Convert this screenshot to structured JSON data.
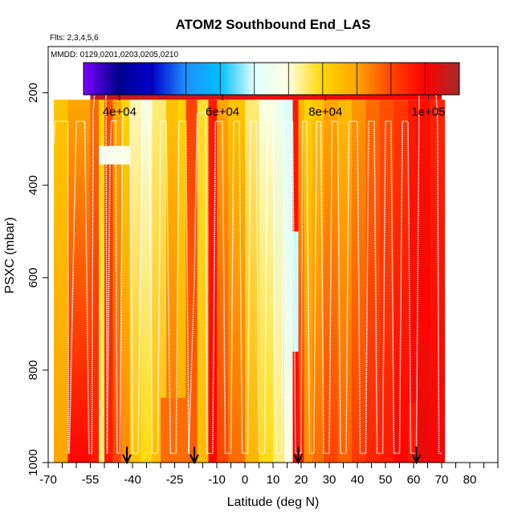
{
  "chart_data": {
    "type": "heatmap",
    "title": "ATOM2 Southbound End_LAS",
    "flights_label": "Flts: 2,3,4,5,6",
    "dates_label": "MMDD: 0129,0201,0203,0205,0210",
    "xlabel": "Latitude (deg N)",
    "ylabel": "PSXC (mbar)",
    "xlim": [
      -70,
      90
    ],
    "ylim": [
      1000,
      100
    ],
    "x_ticks": [
      -70,
      -55,
      -40,
      -25,
      -10,
      0,
      10,
      20,
      30,
      40,
      50,
      60,
      70,
      80
    ],
    "x_minor_step": 5,
    "y_ticks": [
      200,
      400,
      600,
      800,
      1000
    ],
    "colorbar": {
      "range": [
        33000,
        106000
      ],
      "tick_values": [
        40000,
        60000,
        80000,
        100000
      ],
      "tick_labels": [
        "4e+04",
        "6e+04",
        "8e+04",
        "1e+05"
      ],
      "colors": [
        "#7b00ff",
        "#00008b",
        "#0000cd",
        "#1e90ff",
        "#00bfff",
        "#e0ffff",
        "#ffffe0",
        "#ffd700",
        "#ffa500",
        "#ff4500",
        "#ff0000",
        "#a52a2a"
      ]
    },
    "arrow_latitudes": [
      -42,
      -18,
      19,
      61
    ],
    "columns": [
      {
        "x0": -68,
        "x1": -63,
        "p_top": 215,
        "p_bot": 1000,
        "v_top": 82000,
        "v_bot": 86000
      },
      {
        "x0": -63,
        "x1": -55,
        "p_top": 215,
        "p_bot": 1000,
        "v_top": 86000,
        "v_bot": 99000
      },
      {
        "x0": -55,
        "x1": -52,
        "p_top": 215,
        "p_bot": 1000,
        "v_top": 90000,
        "v_bot": 97000
      },
      {
        "x0": -52,
        "x1": -50,
        "p_top": 215,
        "p_bot": 1000,
        "v_top": 80000,
        "v_bot": 76000
      },
      {
        "x0": -50,
        "x1": -47,
        "p_top": 215,
        "p_bot": 1000,
        "v_top": 92000,
        "v_bot": 97000
      },
      {
        "x0": -47,
        "x1": -44,
        "p_top": 215,
        "p_bot": 1000,
        "v_top": 85000,
        "v_bot": 93000
      },
      {
        "x0": -44,
        "x1": -41,
        "p_top": 215,
        "p_bot": 1000,
        "v_top": 80000,
        "v_bot": 88000
      },
      {
        "x0": -41,
        "x1": -37,
        "p_top": 215,
        "p_bot": 1000,
        "v_top": 74000,
        "v_bot": 82000
      },
      {
        "x0": -37,
        "x1": -33,
        "p_top": 215,
        "p_bot": 1000,
        "v_top": 71000,
        "v_bot": 79000
      },
      {
        "x0": -33,
        "x1": -28,
        "p_top": 215,
        "p_bot": 1000,
        "v_top": 76000,
        "v_bot": 83000
      },
      {
        "x0": -28,
        "x1": -24,
        "p_top": 215,
        "p_bot": 1000,
        "v_top": 82000,
        "v_bot": 90000
      },
      {
        "x0": -24,
        "x1": -21,
        "p_top": 215,
        "p_bot": 1000,
        "v_top": 80000,
        "v_bot": 85000
      },
      {
        "x0": -21,
        "x1": -17,
        "p_top": 215,
        "p_bot": 1000,
        "v_top": 93000,
        "v_bot": 91000
      },
      {
        "x0": -17,
        "x1": -13,
        "p_top": 215,
        "p_bot": 1000,
        "v_top": 78000,
        "v_bot": 83000
      },
      {
        "x0": -13,
        "x1": -10,
        "p_top": 215,
        "p_bot": 1000,
        "v_top": 97000,
        "v_bot": 99000
      },
      {
        "x0": -10,
        "x1": -6,
        "p_top": 215,
        "p_bot": 1000,
        "v_top": 86000,
        "v_bot": 93000
      },
      {
        "x0": -6,
        "x1": 0,
        "p_top": 215,
        "p_bot": 1000,
        "v_top": 82000,
        "v_bot": 90000
      },
      {
        "x0": 0,
        "x1": 5,
        "p_top": 215,
        "p_bot": 1000,
        "v_top": 76000,
        "v_bot": 84000
      },
      {
        "x0": 5,
        "x1": 10,
        "p_top": 215,
        "p_bot": 1000,
        "v_top": 72000,
        "v_bot": 79000
      },
      {
        "x0": 10,
        "x1": 14,
        "p_top": 215,
        "p_bot": 1000,
        "v_top": 69000,
        "v_bot": 76000
      },
      {
        "x0": 14,
        "x1": 17,
        "p_top": 215,
        "p_bot": 1000,
        "v_top": 66000,
        "v_bot": 72000
      },
      {
        "x0": 17,
        "x1": 19,
        "p_top": 215,
        "p_bot": 1000,
        "v_top": 97000,
        "v_bot": 99000
      },
      {
        "x0": 19,
        "x1": 21,
        "p_top": 215,
        "p_bot": 1000,
        "v_top": 84000,
        "v_bot": 97000
      },
      {
        "x0": 21,
        "x1": 24,
        "p_top": 215,
        "p_bot": 1000,
        "v_top": 80000,
        "v_bot": 88000
      },
      {
        "x0": 24,
        "x1": 28,
        "p_top": 215,
        "p_bot": 1000,
        "v_top": 82000,
        "v_bot": 90000
      },
      {
        "x0": 28,
        "x1": 33,
        "p_top": 215,
        "p_bot": 1000,
        "v_top": 86000,
        "v_bot": 93000
      },
      {
        "x0": 33,
        "x1": 38,
        "p_top": 215,
        "p_bot": 1000,
        "v_top": 83000,
        "v_bot": 91000
      },
      {
        "x0": 38,
        "x1": 43,
        "p_top": 215,
        "p_bot": 1000,
        "v_top": 87000,
        "v_bot": 94000
      },
      {
        "x0": 43,
        "x1": 48,
        "p_top": 215,
        "p_bot": 1000,
        "v_top": 90000,
        "v_bot": 96000
      },
      {
        "x0": 48,
        "x1": 53,
        "p_top": 215,
        "p_bot": 1000,
        "v_top": 92000,
        "v_bot": 97000
      },
      {
        "x0": 53,
        "x1": 58,
        "p_top": 215,
        "p_bot": 1000,
        "v_top": 94000,
        "v_bot": 99000
      },
      {
        "x0": 58,
        "x1": 61,
        "p_top": 215,
        "p_bot": 1000,
        "v_top": 97000,
        "v_bot": 100000
      },
      {
        "x0": 61,
        "x1": 66,
        "p_top": 215,
        "p_bot": 1000,
        "v_top": 98000,
        "v_bot": 101000
      },
      {
        "x0": 66,
        "x1": 71,
        "p_top": 215,
        "p_bot": 1000,
        "v_top": 96000,
        "v_bot": 100000
      }
    ],
    "overlays": [
      {
        "x0": -55,
        "x1": 70,
        "p_top": 165,
        "p_bot": 215,
        "v_left": 104000,
        "v_right": 99000
      },
      {
        "x0": -52,
        "x1": -41,
        "p_top": 315,
        "p_bot": 355,
        "v_left": 70000,
        "v_right": 72000
      },
      {
        "x0": 17,
        "x1": 19,
        "p_top": 500,
        "p_bot": 760,
        "v_left": 65000,
        "v_right": 66000
      },
      {
        "x0": -30,
        "x1": -20,
        "p_top": 860,
        "p_bot": 1000,
        "v_left": 90000,
        "v_right": 90000
      },
      {
        "x0": 58,
        "x1": 61,
        "p_top": 870,
        "p_bot": 1000,
        "v_left": 97000,
        "v_right": 97000
      },
      {
        "x0": 63,
        "x1": 66,
        "p_top": 580,
        "p_bot": 740,
        "v_left": 99000,
        "v_right": 99000
      }
    ],
    "flight_track": [
      [
        -68,
        310
      ],
      [
        -67.5,
        262
      ],
      [
        -63,
        262
      ],
      [
        -62.8,
        980
      ],
      [
        -62.5,
        980
      ],
      [
        -60,
        262
      ],
      [
        -57,
        262
      ],
      [
        -55.5,
        980
      ],
      [
        -54.5,
        980
      ],
      [
        -54,
        240
      ],
      [
        -53.5,
        200
      ],
      [
        -49.5,
        200
      ],
      [
        -49,
        980
      ],
      [
        -48,
        340
      ],
      [
        -47.5,
        260
      ],
      [
        -46,
        260
      ],
      [
        -45.5,
        980
      ],
      [
        -44.5,
        980
      ],
      [
        -43.5,
        245
      ],
      [
        -41,
        240
      ],
      [
        -40.5,
        500
      ],
      [
        -40,
        980
      ],
      [
        -38,
        980
      ],
      [
        -36.5,
        262
      ],
      [
        -34,
        262
      ],
      [
        -33,
        980
      ],
      [
        -31,
        980
      ],
      [
        -30,
        262
      ],
      [
        -28,
        262
      ],
      [
        -26.5,
        980
      ],
      [
        -24.5,
        980
      ],
      [
        -23.5,
        262
      ],
      [
        -21,
        262
      ],
      [
        -20,
        980
      ],
      [
        -18,
        600
      ],
      [
        -17,
        245
      ],
      [
        -14,
        240
      ],
      [
        -13.5,
        980
      ],
      [
        -11.5,
        980
      ],
      [
        -10.5,
        262
      ],
      [
        -8,
        262
      ],
      [
        -7,
        980
      ],
      [
        -5,
        980
      ],
      [
        -4,
        262
      ],
      [
        -2,
        262
      ],
      [
        -1,
        980
      ],
      [
        1,
        980
      ],
      [
        2,
        262
      ],
      [
        4,
        262
      ],
      [
        5,
        980
      ],
      [
        7,
        980
      ],
      [
        8,
        262
      ],
      [
        10,
        262
      ],
      [
        11,
        980
      ],
      [
        13,
        980
      ],
      [
        14,
        262
      ],
      [
        17,
        262
      ],
      [
        18,
        980
      ],
      [
        20,
        980
      ],
      [
        20.5,
        262
      ],
      [
        22,
        262
      ],
      [
        23,
        980
      ],
      [
        24.5,
        980
      ],
      [
        25.5,
        262
      ],
      [
        27,
        262
      ],
      [
        28,
        980
      ],
      [
        30,
        980
      ],
      [
        31,
        262
      ],
      [
        33,
        262
      ],
      [
        34,
        980
      ],
      [
        36,
        980
      ],
      [
        37,
        262
      ],
      [
        40,
        262
      ],
      [
        41,
        980
      ],
      [
        43,
        980
      ],
      [
        44,
        262
      ],
      [
        46,
        262
      ],
      [
        47,
        980
      ],
      [
        49,
        980
      ],
      [
        50,
        262
      ],
      [
        52,
        262
      ],
      [
        53,
        980
      ],
      [
        55,
        980
      ],
      [
        56,
        262
      ],
      [
        58,
        262
      ],
      [
        59,
        980
      ],
      [
        61,
        980
      ],
      [
        62,
        200
      ],
      [
        68,
        200
      ],
      [
        68.5,
        260
      ],
      [
        69,
        980
      ],
      [
        70,
        980
      ]
    ]
  }
}
